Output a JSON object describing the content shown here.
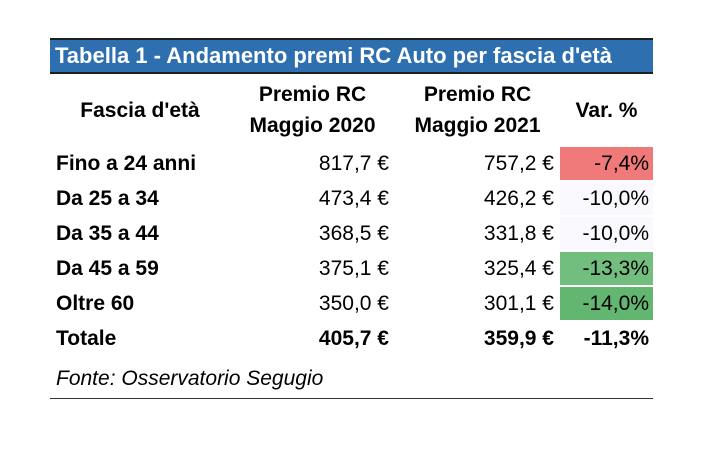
{
  "title": "Tabella 1 - Andamento premi RC Auto per fascia d'età",
  "headers": {
    "col1": "Fascia d'età",
    "col2_line1": "Premio RC",
    "col2_line2": "Maggio 2020",
    "col3_line1": "Premio RC",
    "col3_line2": "Maggio 2021",
    "col4": "Var. %"
  },
  "rows": [
    {
      "fascia": "Fino a 24 anni",
      "premio_2020": "817,7 €",
      "premio_2021": "757,2 €",
      "var": "-7,4%",
      "var_color": "#f07a7a"
    },
    {
      "fascia": "Da 25 a 34",
      "premio_2020": "473,4 €",
      "premio_2021": "426,2 €",
      "var": "-10,0%",
      "var_color": "#f8f8fd"
    },
    {
      "fascia": "Da 35 a 44",
      "premio_2020": "368,5 €",
      "premio_2021": "331,8 €",
      "var": "-10,0%",
      "var_color": "#f8f8fd"
    },
    {
      "fascia": "Da 45 a 59",
      "premio_2020": "375,1 €",
      "premio_2021": "325,4 €",
      "var": "-13,3%",
      "var_color": "#72be7f"
    },
    {
      "fascia": "Oltre 60",
      "premio_2020": "350,0 €",
      "premio_2021": "301,1 €",
      "var": "-14,0%",
      "var_color": "#63b66f"
    }
  ],
  "total": {
    "label": "Totale",
    "premio_2020": "405,7 €",
    "premio_2021": "359,9 €",
    "var": "-11,3%"
  },
  "source": "Fonte: Osservatorio Segugio",
  "colors": {
    "title_bg": "#2e6fb0",
    "title_text": "#ffffff"
  }
}
